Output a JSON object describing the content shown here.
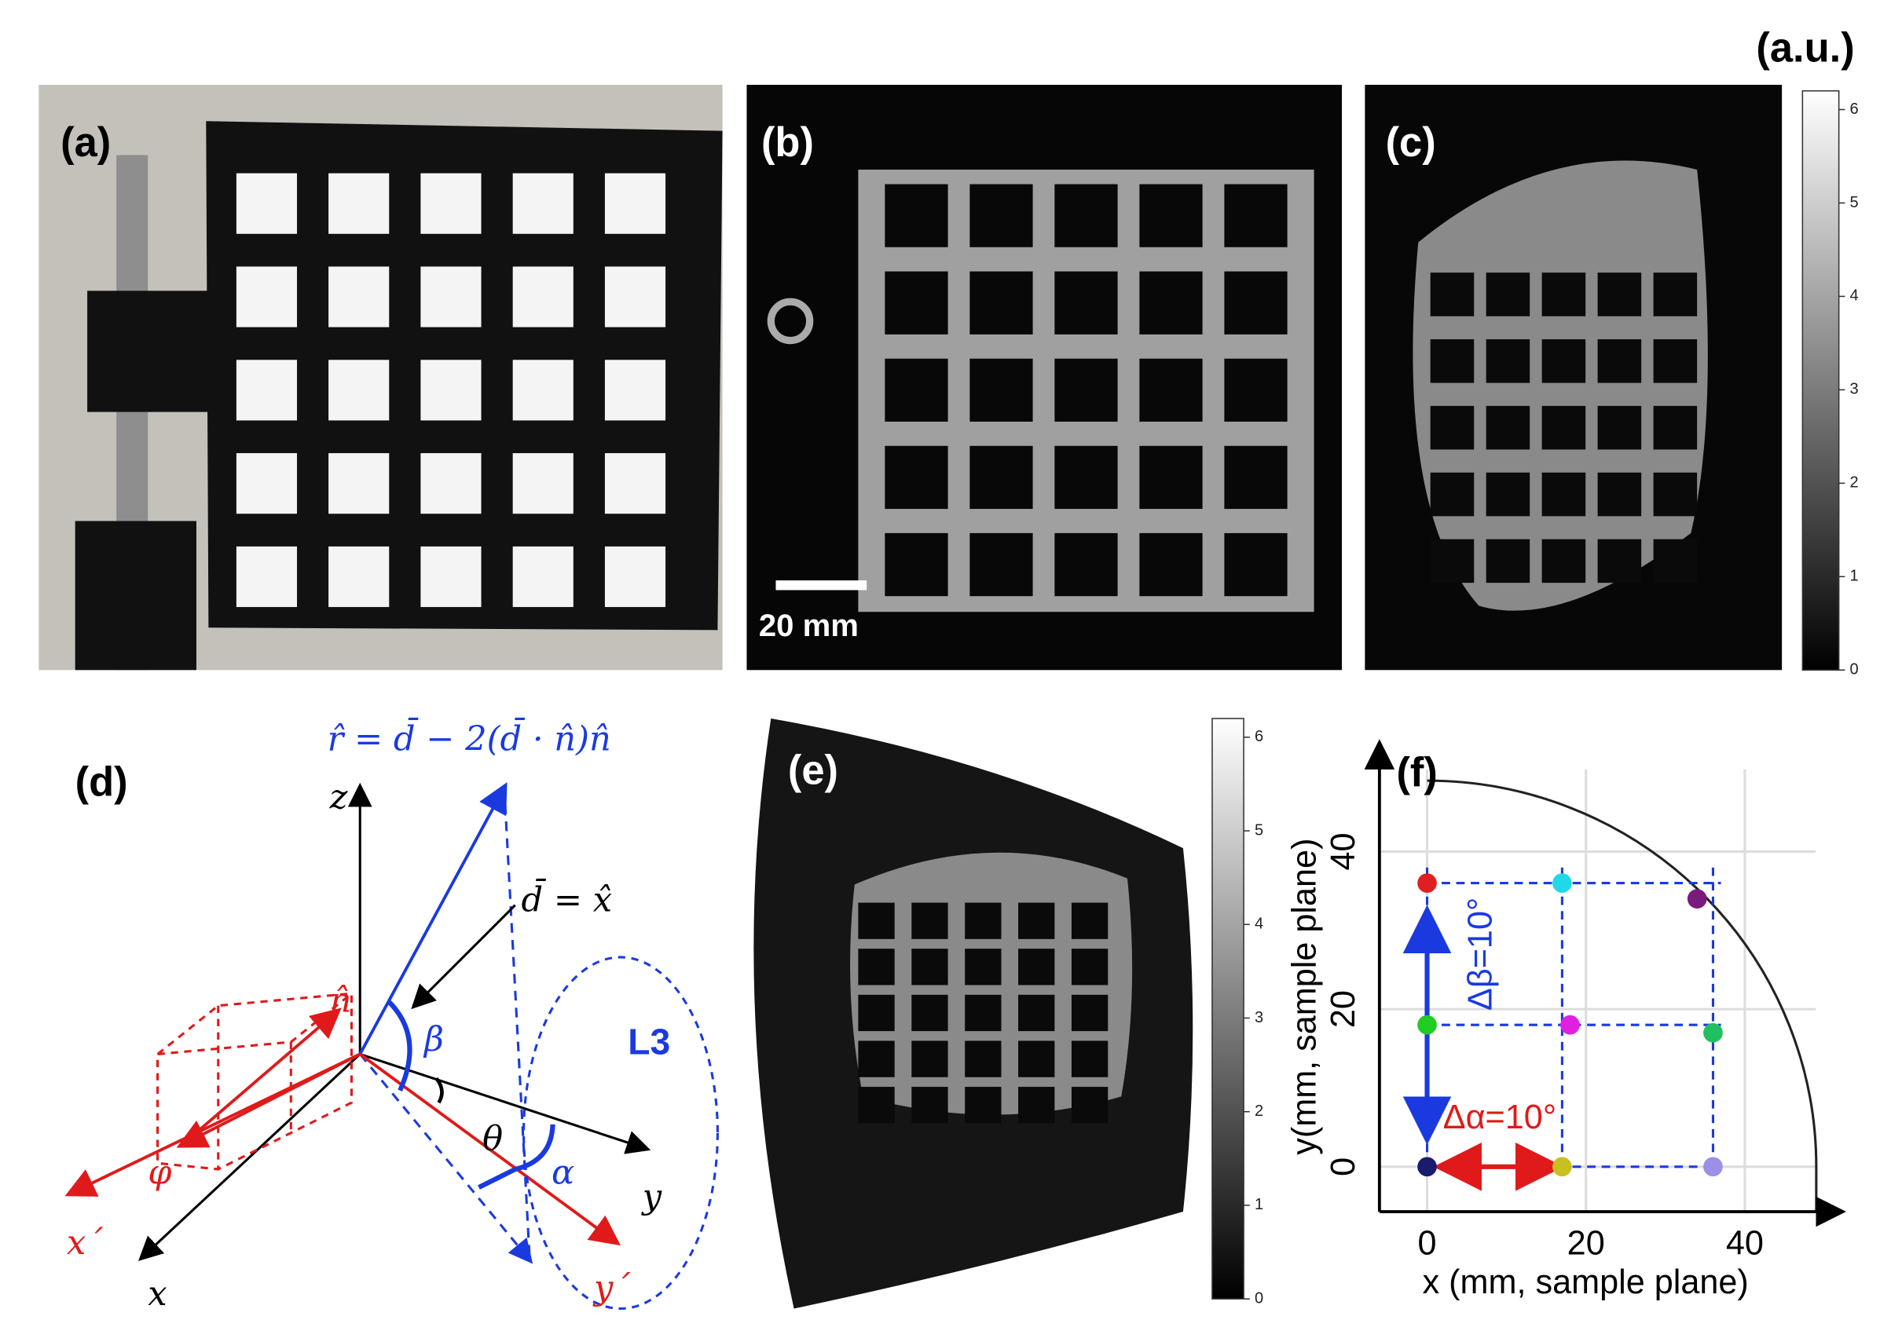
{
  "header": {
    "unit_label": "(a.u.)"
  },
  "panels": {
    "a": {
      "label": "(a)"
    },
    "b": {
      "label": "(b)",
      "scale_bar": "20 mm"
    },
    "c": {
      "label": "(c)"
    },
    "d": {
      "label": "(d)",
      "formula": "r̂ = d̄ − 2(d̄ · n̂)n̂",
      "incident": "d̄ = x̂",
      "normal": "n̂",
      "z": "z",
      "x": "x",
      "y": "y",
      "x_prime": "x´",
      "y_prime": "y´",
      "beta": "β",
      "theta": "θ",
      "alpha": "α",
      "phi": "φ",
      "lens": "L3"
    },
    "e": {
      "label": "(e)"
    }
  },
  "colorbars": [
    {
      "lim": [
        0,
        6.2
      ],
      "ticks": [
        0,
        1,
        2,
        3,
        4,
        5,
        6
      ]
    },
    {
      "lim": [
        0,
        6.2
      ],
      "ticks": [
        0,
        1,
        2,
        3,
        4,
        5,
        6
      ]
    }
  ],
  "chart_data": {
    "type": "scatter",
    "panel_label": "(f)",
    "xlabel": "x (mm, sample plane)",
    "ylabel": "y(mm, sample plane)",
    "xlim": [
      -6,
      52
    ],
    "ylim": [
      -5.7,
      53.5
    ],
    "xticks": [
      0,
      20,
      40
    ],
    "yticks": [
      0,
      20,
      40
    ],
    "grid": true,
    "x": [
      0,
      17,
      36,
      0,
      18,
      36,
      0,
      17,
      34
    ],
    "values": [
      0,
      0,
      0,
      18,
      18,
      17,
      36,
      36,
      34
    ],
    "colors": [
      "#1a1a6e",
      "#c8c020",
      "#9a90e8",
      "#22cc22",
      "#e020e0",
      "#20c060",
      "#e02020",
      "#20d8e8",
      "#7a1a7a"
    ],
    "boundary_radius": 49,
    "annotations": [
      {
        "text": "Δβ=10°",
        "color": "#1a3ae0"
      },
      {
        "text": "Δα=10°",
        "color": "#e01a1a"
      }
    ]
  }
}
